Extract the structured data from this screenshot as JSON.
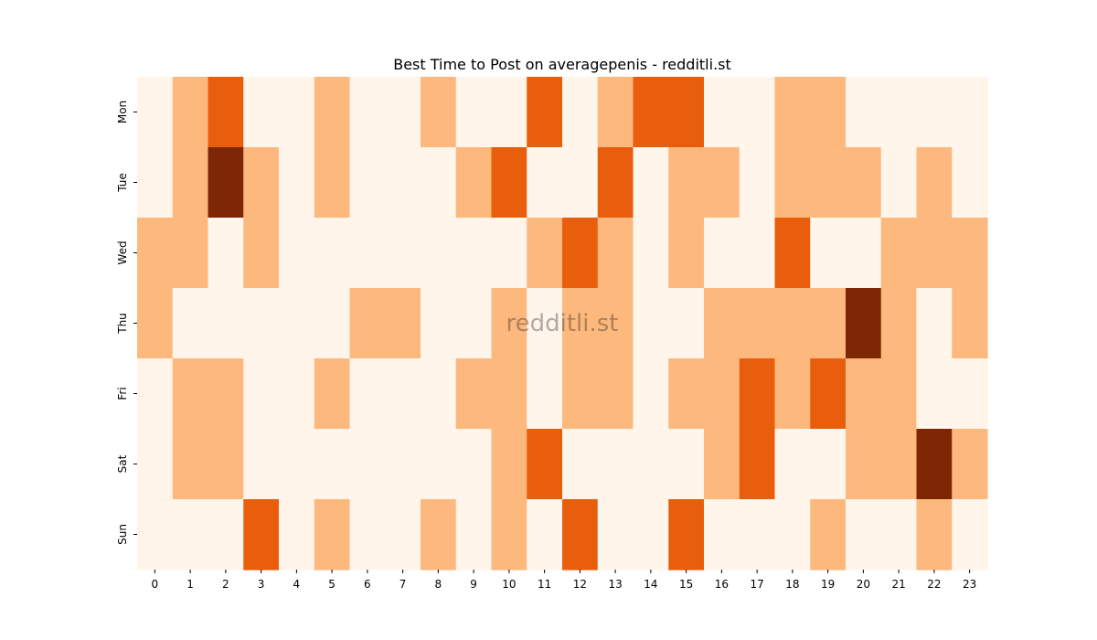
{
  "chart_data": {
    "type": "heatmap",
    "title": "Best Time to Post on averagepenis - redditli.st",
    "xlabel": "",
    "ylabel": "",
    "x": [
      "0",
      "1",
      "2",
      "3",
      "4",
      "5",
      "6",
      "7",
      "8",
      "9",
      "10",
      "11",
      "12",
      "13",
      "14",
      "15",
      "16",
      "17",
      "18",
      "19",
      "20",
      "21",
      "22",
      "23"
    ],
    "y": [
      "Mon",
      "Tue",
      "Wed",
      "Thu",
      "Fri",
      "Sat",
      "Sun"
    ],
    "values": [
      [
        0,
        1,
        2,
        0,
        0,
        1,
        0,
        0,
        1,
        0,
        0,
        2,
        0,
        1,
        2,
        2,
        0,
        0,
        1,
        1,
        0,
        0,
        0,
        0
      ],
      [
        0,
        1,
        3,
        1,
        0,
        1,
        0,
        0,
        0,
        1,
        2,
        0,
        0,
        2,
        0,
        1,
        1,
        0,
        1,
        1,
        1,
        0,
        1,
        0
      ],
      [
        1,
        1,
        0,
        1,
        0,
        0,
        0,
        0,
        0,
        0,
        0,
        1,
        2,
        1,
        0,
        1,
        0,
        0,
        2,
        0,
        0,
        1,
        1,
        1
      ],
      [
        1,
        0,
        0,
        0,
        0,
        0,
        1,
        1,
        0,
        0,
        1,
        0,
        1,
        1,
        0,
        0,
        1,
        1,
        1,
        1,
        3,
        1,
        0,
        1
      ],
      [
        0,
        1,
        1,
        0,
        0,
        1,
        0,
        0,
        0,
        1,
        1,
        0,
        1,
        1,
        0,
        1,
        1,
        2,
        1,
        2,
        1,
        1,
        0,
        0
      ],
      [
        0,
        1,
        1,
        0,
        0,
        0,
        0,
        0,
        0,
        0,
        1,
        2,
        0,
        0,
        0,
        0,
        1,
        2,
        0,
        0,
        1,
        1,
        3,
        1
      ],
      [
        0,
        0,
        0,
        2,
        0,
        1,
        0,
        0,
        1,
        0,
        1,
        0,
        2,
        0,
        0,
        2,
        0,
        0,
        0,
        1,
        0,
        0,
        1,
        0
      ]
    ],
    "colors": [
      "#fff5eb",
      "#fdb97d",
      "#e95e0d",
      "#7f2704"
    ],
    "colormap": "Oranges",
    "colorbar": false,
    "watermark": "redditli.st"
  }
}
